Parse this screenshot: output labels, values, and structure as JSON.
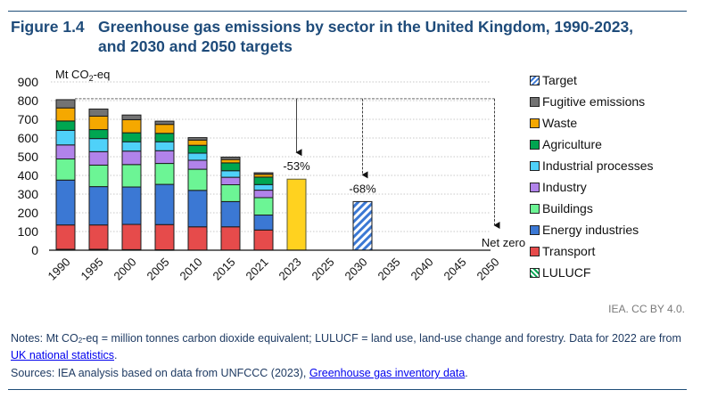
{
  "header": {
    "figure_number": "Figure 1.4",
    "title_line1": "Greenhouse gas emissions by sector in the United Kingdom, 1990-2023,",
    "title_line2": "and 2030 and 2050 targets"
  },
  "chart_data": {
    "type": "bar",
    "stacked": true,
    "title": "Greenhouse gas emissions by sector in the United Kingdom, 1990-2023, and 2030 and 2050 targets",
    "ylabel_main": "Mt CO",
    "ylabel_sub": "2",
    "ylabel_suffix": "-eq",
    "ylim": [
      0,
      900
    ],
    "yticks": [
      0,
      100,
      200,
      300,
      400,
      500,
      600,
      700,
      800,
      900
    ],
    "grid": true,
    "legend_position": "right",
    "categories": [
      "1990",
      "1995",
      "2000",
      "2005",
      "2010",
      "2015",
      "2021",
      "2023",
      "2025",
      "2030",
      "2035",
      "2040",
      "2045",
      "2050"
    ],
    "series": [
      {
        "name": "LULUCF",
        "color": "#00a651",
        "pattern": "hatched",
        "values": [
          5,
          5,
          3,
          2,
          0,
          0,
          0,
          null,
          null,
          null,
          null,
          null,
          null,
          null
        ]
      },
      {
        "name": "Transport",
        "color": "#e64b4b",
        "values": [
          130,
          130,
          135,
          135,
          125,
          125,
          108,
          null,
          null,
          null,
          null,
          null,
          null,
          null
        ]
      },
      {
        "name": "Energy industries",
        "color": "#3b78d4",
        "values": [
          240,
          205,
          200,
          215,
          195,
          135,
          80,
          null,
          null,
          null,
          null,
          null,
          null,
          null
        ]
      },
      {
        "name": "Buildings",
        "color": "#6cf595",
        "values": [
          113,
          115,
          120,
          112,
          113,
          90,
          93,
          null,
          null,
          null,
          null,
          null,
          null,
          null
        ]
      },
      {
        "name": "Industry",
        "color": "#b183ea",
        "values": [
          75,
          72,
          72,
          68,
          48,
          40,
          40,
          null,
          null,
          null,
          null,
          null,
          null,
          null
        ]
      },
      {
        "name": "Industrial processes",
        "color": "#4fd1f9",
        "values": [
          78,
          70,
          50,
          48,
          38,
          35,
          30,
          null,
          null,
          null,
          null,
          null,
          null,
          null
        ]
      },
      {
        "name": "Agriculture",
        "color": "#00a651",
        "values": [
          50,
          48,
          48,
          45,
          42,
          42,
          40,
          null,
          null,
          null,
          null,
          null,
          null,
          null
        ]
      },
      {
        "name": "Waste",
        "color": "#f5a800",
        "values": [
          70,
          72,
          70,
          48,
          28,
          18,
          15,
          null,
          null,
          null,
          null,
          null,
          null,
          null
        ]
      },
      {
        "name": "Fugitive emissions",
        "color": "#737373",
        "values": [
          44,
          38,
          25,
          17,
          13,
          13,
          8,
          null,
          null,
          null,
          null,
          null,
          null,
          null
        ]
      }
    ],
    "totals_estimated": [
      805,
      755,
      723,
      690,
      602,
      498,
      414
    ],
    "estimate_2023": {
      "category": "2023",
      "value": 380,
      "color": "#ffd21f",
      "label": "-53%"
    },
    "target_2030": {
      "category": "2030",
      "value": 260,
      "label": "-68%",
      "pattern": "blue-white-hatch",
      "color": "#3b78d4"
    },
    "target_2050": {
      "category": "2050",
      "value": 0,
      "label": "Net zero"
    },
    "reference_line": {
      "from_category": "1990",
      "value": 810,
      "style": "dashed",
      "arrows_to": [
        "2023",
        "2030",
        "2050"
      ]
    }
  },
  "legend": {
    "items": [
      {
        "label": "Target",
        "swatch": "hatch-blue"
      },
      {
        "label": "Fugitive emissions",
        "color": "#737373"
      },
      {
        "label": "Waste",
        "color": "#f5a800"
      },
      {
        "label": "Agriculture",
        "color": "#00a651"
      },
      {
        "label": "Industrial processes",
        "color": "#4fd1f9"
      },
      {
        "label": "Industry",
        "color": "#b183ea"
      },
      {
        "label": "Buildings",
        "color": "#6cf595"
      },
      {
        "label": "Energy industries",
        "color": "#3b78d4"
      },
      {
        "label": "Transport",
        "color": "#e64b4b"
      },
      {
        "label": "LULUCF",
        "swatch": "hatch-green"
      }
    ]
  },
  "footer": {
    "credit": "IEA. CC BY 4.0.",
    "notes_pre": "Notes: Mt CO",
    "notes_sub": "2",
    "notes_mid": "-eq = million tonnes carbon dioxide equivalent; LULUCF = land use, land-use change and forestry. Data for 2022 are from ",
    "notes_link": "UK national statistics",
    "notes_end": ".",
    "sources_pre": "Sources: IEA analysis based on data from UNFCCC (2023), ",
    "sources_link": "Greenhouse gas inventory data",
    "sources_end": "."
  }
}
